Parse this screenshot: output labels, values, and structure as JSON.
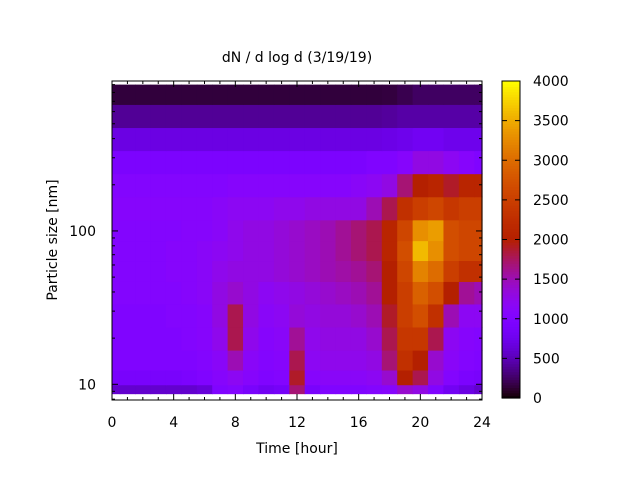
{
  "chart_data": {
    "type": "heatmap",
    "title": "dN / d log d (3/19/19)",
    "xlabel": "Time [hour]",
    "ylabel": "Particle size [nm]",
    "xlim": [
      0,
      24
    ],
    "ylim": [
      7.9,
      950
    ],
    "yscale": "log",
    "xticks": [
      "0",
      "4",
      "8",
      "12",
      "16",
      "20",
      "24"
    ],
    "yticks": [
      "10",
      "100"
    ],
    "colorbar": {
      "range": [
        0,
        4000
      ],
      "ticks": [
        "0",
        "500",
        "1000",
        "1500",
        "2000",
        "2500",
        "3000",
        "3500",
        "4000"
      ]
    },
    "x": [
      0,
      1,
      2,
      3,
      4,
      5,
      6,
      7,
      8,
      9,
      10,
      11,
      12,
      13,
      14,
      15,
      16,
      17,
      18,
      19,
      20,
      21,
      22,
      23,
      24
    ],
    "y": [
      9,
      11,
      14,
      20,
      28,
      40,
      55,
      75,
      100,
      140,
      200,
      280,
      400,
      560,
      800
    ],
    "z": [
      [
        600,
        600,
        600,
        600,
        600,
        600,
        650,
        1000,
        1050,
        900,
        800,
        850,
        1700,
        900,
        1000,
        1000,
        1000,
        1050,
        1100,
        1400,
        1300,
        1000,
        800,
        700,
        600
      ],
      [
        900,
        900,
        900,
        900,
        900,
        950,
        1000,
        1100,
        1200,
        1100,
        1000,
        1050,
        1900,
        1100,
        1150,
        1150,
        1150,
        1200,
        1400,
        2000,
        1800,
        1300,
        1050,
        950,
        900
      ],
      [
        1000,
        1000,
        1000,
        1000,
        1000,
        1000,
        1050,
        1150,
        1500,
        1150,
        1050,
        1100,
        1800,
        1200,
        1250,
        1250,
        1250,
        1300,
        1700,
        2300,
        2000,
        1400,
        1150,
        1050,
        1000
      ],
      [
        1000,
        1000,
        1000,
        1000,
        1000,
        1050,
        1100,
        1250,
        1800,
        1250,
        1100,
        1150,
        1600,
        1250,
        1300,
        1300,
        1300,
        1400,
        1800,
        2400,
        2400,
        1800,
        1200,
        1100,
        1050
      ],
      [
        1000,
        1000,
        1000,
        1000,
        1050,
        1050,
        1100,
        1300,
        1800,
        1300,
        1150,
        1200,
        1350,
        1300,
        1350,
        1350,
        1400,
        1500,
        1900,
        2500,
        2700,
        2300,
        1500,
        1200,
        1200
      ],
      [
        1050,
        1050,
        1050,
        1050,
        1050,
        1100,
        1150,
        1300,
        1400,
        1300,
        1200,
        1250,
        1300,
        1350,
        1400,
        1450,
        1500,
        1600,
        2000,
        2500,
        2900,
        2700,
        2000,
        1600,
        1500
      ],
      [
        1050,
        1050,
        1050,
        1050,
        1100,
        1100,
        1150,
        1250,
        1300,
        1300,
        1300,
        1350,
        1400,
        1450,
        1500,
        1550,
        1600,
        1700,
        2000,
        2600,
        3200,
        3000,
        2500,
        2300,
        2300
      ],
      [
        1050,
        1050,
        1050,
        1050,
        1100,
        1100,
        1150,
        1200,
        1250,
        1300,
        1300,
        1350,
        1400,
        1450,
        1500,
        1600,
        1700,
        1800,
        2100,
        2700,
        3600,
        3300,
        2700,
        2600,
        2600
      ],
      [
        1050,
        1050,
        1050,
        1050,
        1050,
        1100,
        1100,
        1150,
        1250,
        1300,
        1300,
        1350,
        1400,
        1450,
        1500,
        1600,
        1700,
        1800,
        2100,
        2600,
        3300,
        3400,
        2700,
        2600,
        2600
      ],
      [
        1100,
        1100,
        1100,
        1100,
        1100,
        1100,
        1100,
        1150,
        1200,
        1200,
        1200,
        1250,
        1250,
        1300,
        1300,
        1300,
        1300,
        1500,
        1800,
        2300,
        2500,
        2600,
        2400,
        2500,
        2500
      ],
      [
        1050,
        1050,
        1050,
        1050,
        1050,
        1050,
        1050,
        1050,
        1100,
        1100,
        1100,
        1100,
        1100,
        1100,
        1100,
        1100,
        1150,
        1200,
        1300,
        1700,
        2000,
        2100,
        1900,
        2100,
        2100
      ],
      [
        950,
        950,
        950,
        950,
        950,
        950,
        950,
        950,
        950,
        950,
        950,
        950,
        950,
        950,
        950,
        950,
        950,
        1000,
        1000,
        1100,
        1300,
        1300,
        1200,
        1100,
        1000
      ],
      [
        700,
        700,
        700,
        700,
        700,
        700,
        700,
        700,
        700,
        700,
        700,
        700,
        700,
        700,
        700,
        700,
        700,
        700,
        720,
        750,
        800,
        800,
        750,
        750,
        750
      ],
      [
        400,
        400,
        400,
        400,
        400,
        400,
        400,
        400,
        400,
        400,
        400,
        400,
        400,
        400,
        400,
        400,
        400,
        400,
        420,
        450,
        450,
        450,
        450,
        450,
        450
      ],
      [
        150,
        150,
        150,
        150,
        150,
        150,
        150,
        150,
        150,
        150,
        150,
        150,
        150,
        150,
        150,
        150,
        150,
        150,
        160,
        200,
        250,
        250,
        250,
        250,
        250
      ]
    ]
  }
}
